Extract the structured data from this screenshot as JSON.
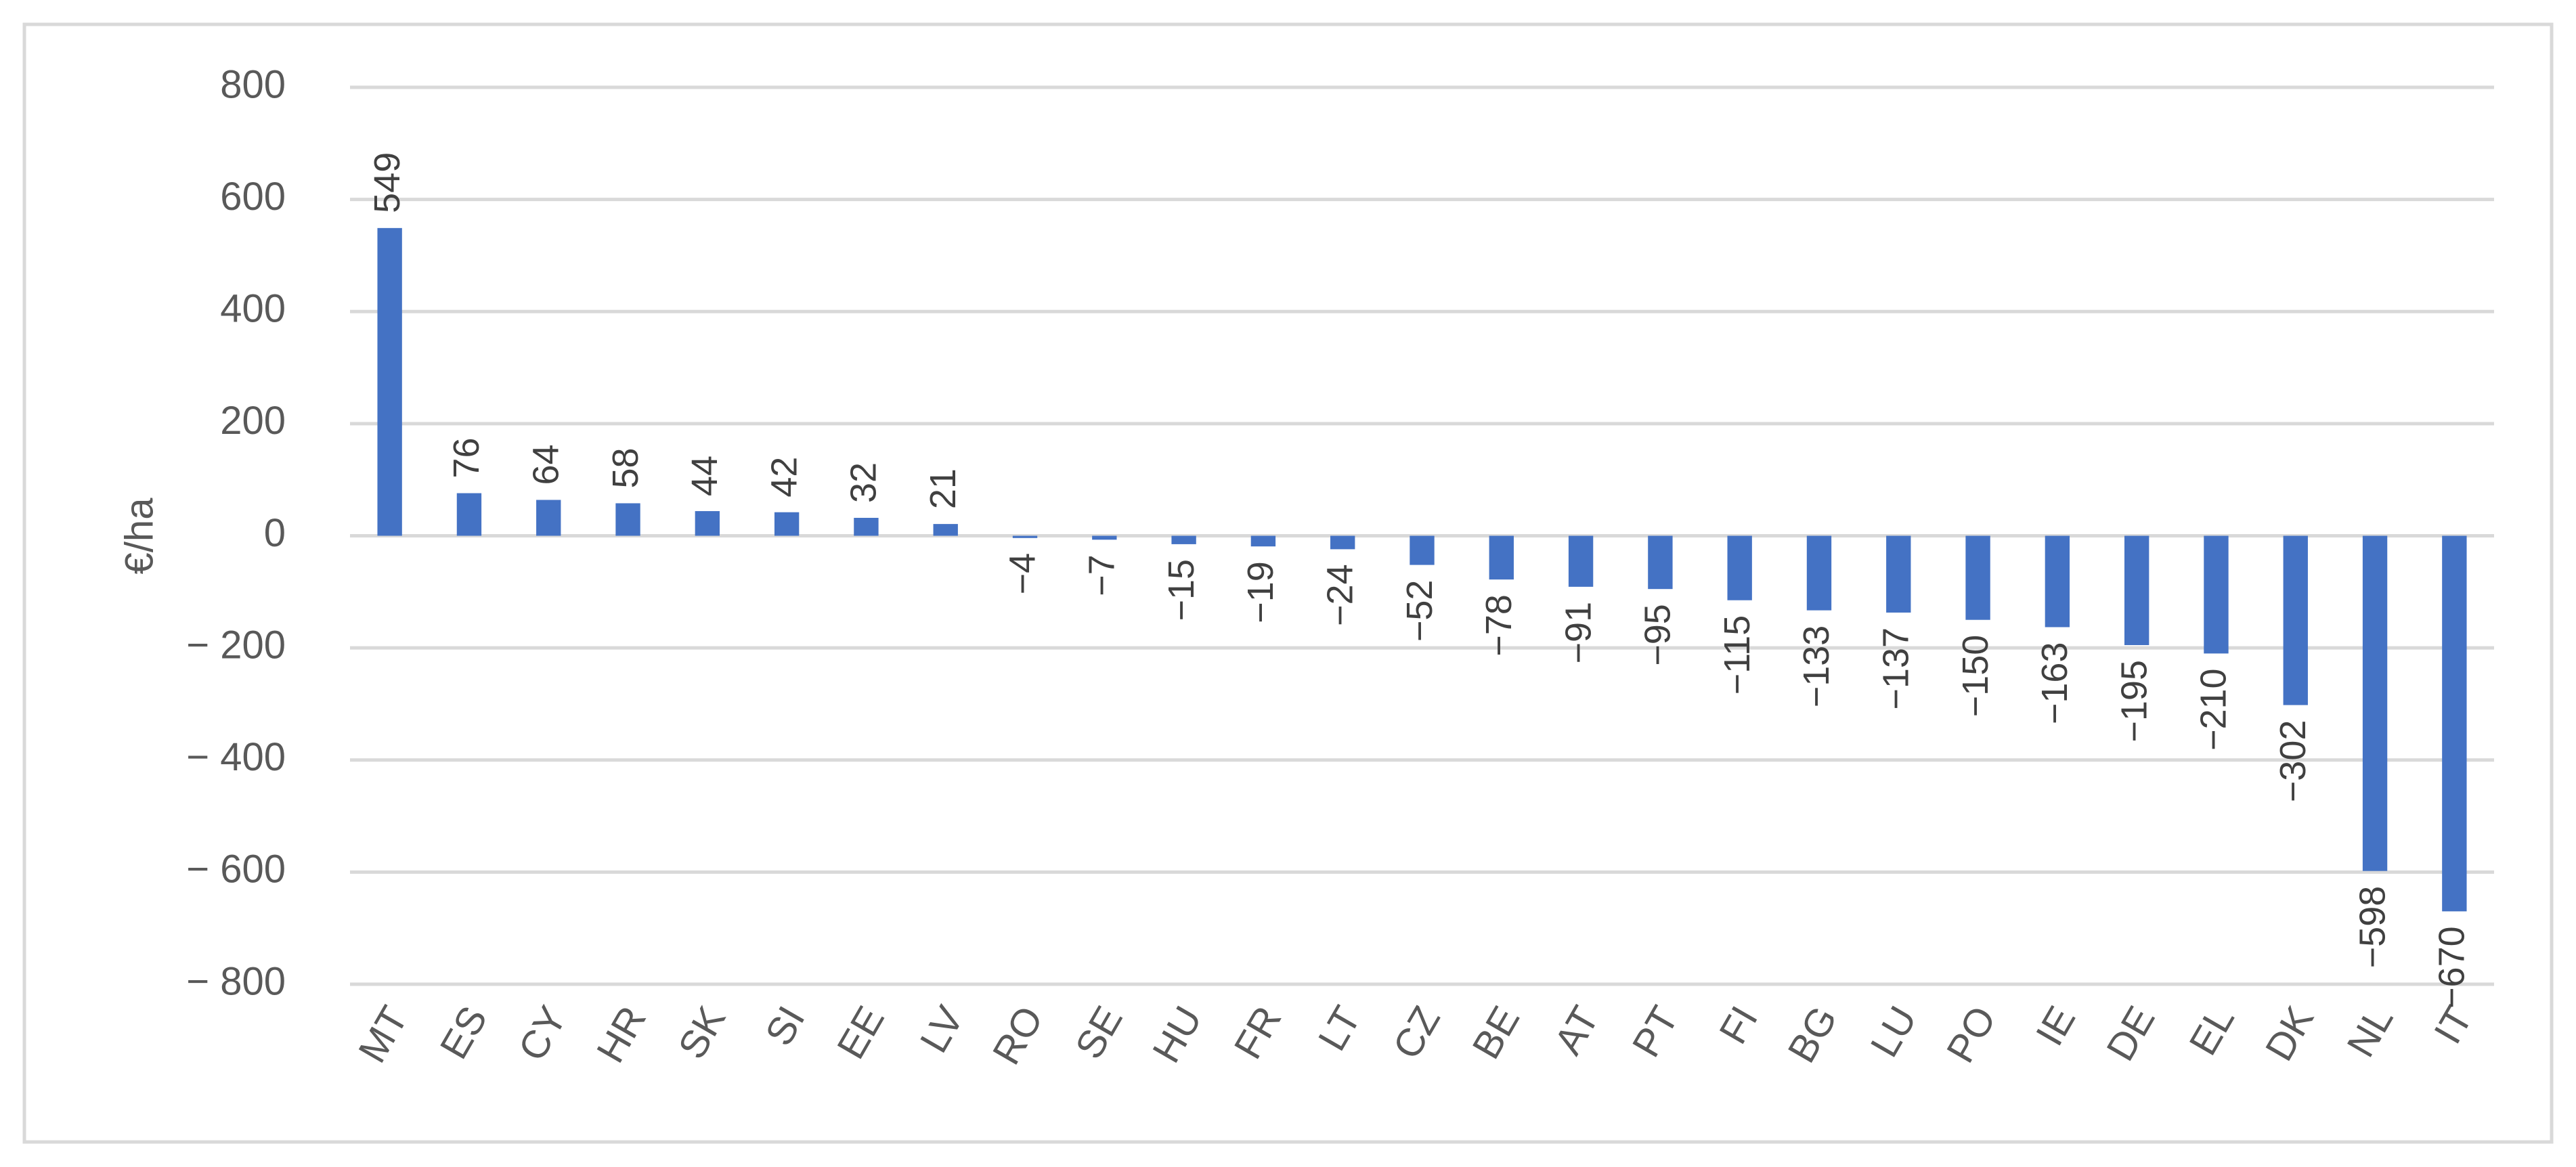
{
  "chart_data": {
    "type": "bar",
    "y_label": "€/ha",
    "categories": [
      "MT",
      "ES",
      "CY",
      "HR",
      "SK",
      "SI",
      "EE",
      "LV",
      "RO",
      "SE",
      "HU",
      "FR",
      "LT",
      "CZ",
      "BE",
      "AT",
      "PT",
      "FI",
      "BG",
      "LU",
      "PO",
      "IE",
      "DE",
      "EL",
      "DK",
      "NL",
      "IT"
    ],
    "values": [
      549,
      76,
      64,
      58,
      44,
      42,
      32,
      21,
      -4,
      -7,
      -15,
      -19,
      -24,
      -52,
      -78,
      -91,
      -95,
      -115,
      -133,
      -137,
      -150,
      -163,
      -195,
      -210,
      -302,
      -598,
      -670
    ],
    "value_labels": [
      "549",
      "76",
      "64",
      "58",
      "44",
      "42",
      "32",
      "21",
      "−4",
      "−7",
      "−15",
      "−19",
      "−24",
      "−52",
      "−78",
      "−91",
      "−95",
      "−115",
      "−133",
      "−137",
      "−150",
      "−163",
      "−195",
      "−210",
      "−302",
      "−598",
      "−670"
    ],
    "color": "#4472c4",
    "ylim": [
      -800,
      800
    ],
    "yticks": [
      {
        "value": -800,
        "label": "− 800"
      },
      {
        "value": -600,
        "label": "− 600"
      },
      {
        "value": -400,
        "label": "− 400"
      },
      {
        "value": -200,
        "label": "− 200"
      },
      0,
      200,
      400,
      600,
      800
    ],
    "grid": true
  }
}
